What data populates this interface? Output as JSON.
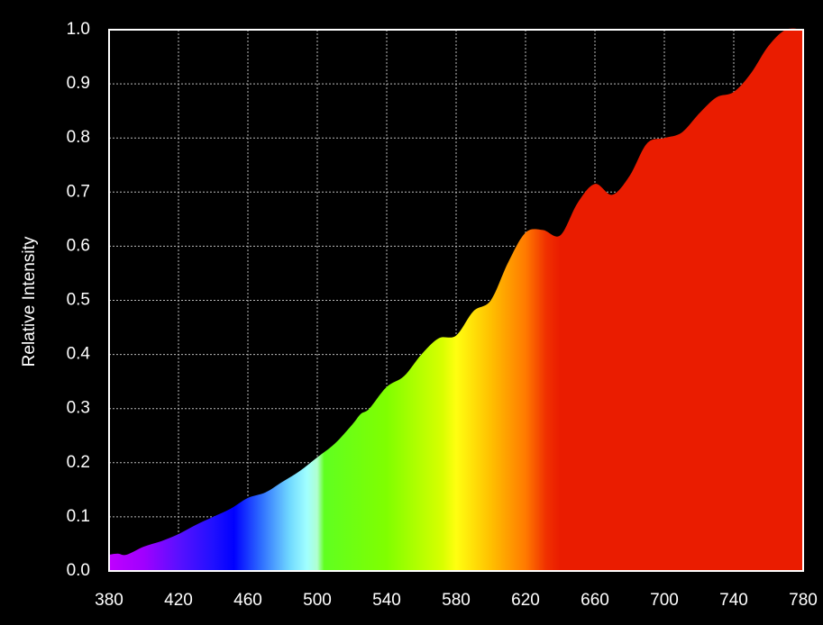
{
  "chart_data": {
    "type": "area",
    "y_label": "Relative Intensity",
    "x": [
      380,
      385,
      390,
      400,
      410,
      420,
      430,
      440,
      450,
      460,
      470,
      480,
      490,
      500,
      510,
      520,
      525,
      530,
      540,
      550,
      560,
      570,
      580,
      590,
      600,
      610,
      620,
      630,
      640,
      650,
      660,
      670,
      680,
      690,
      700,
      710,
      720,
      730,
      740,
      750,
      760,
      770,
      780
    ],
    "y": [
      0.03,
      0.032,
      0.03,
      0.045,
      0.055,
      0.068,
      0.085,
      0.1,
      0.115,
      0.135,
      0.145,
      0.165,
      0.185,
      0.21,
      0.235,
      0.27,
      0.29,
      0.3,
      0.34,
      0.36,
      0.4,
      0.43,
      0.435,
      0.48,
      0.5,
      0.57,
      0.625,
      0.63,
      0.62,
      0.68,
      0.715,
      0.695,
      0.73,
      0.79,
      0.8,
      0.81,
      0.845,
      0.875,
      0.885,
      0.92,
      0.97,
      1.0,
      1.0
    ],
    "xlim": [
      380,
      780
    ],
    "ylim": [
      0,
      1
    ],
    "xticks": [
      380,
      420,
      460,
      500,
      540,
      580,
      620,
      660,
      700,
      740,
      780
    ],
    "yticks": [
      {
        "value": 0,
        "label": "0.0"
      },
      0.1,
      0.2,
      0.3,
      0.4,
      0.5,
      0.6,
      0.7,
      0.8,
      0.9,
      {
        "value": 1,
        "label": "1.0"
      }
    ],
    "grid": true
  }
}
